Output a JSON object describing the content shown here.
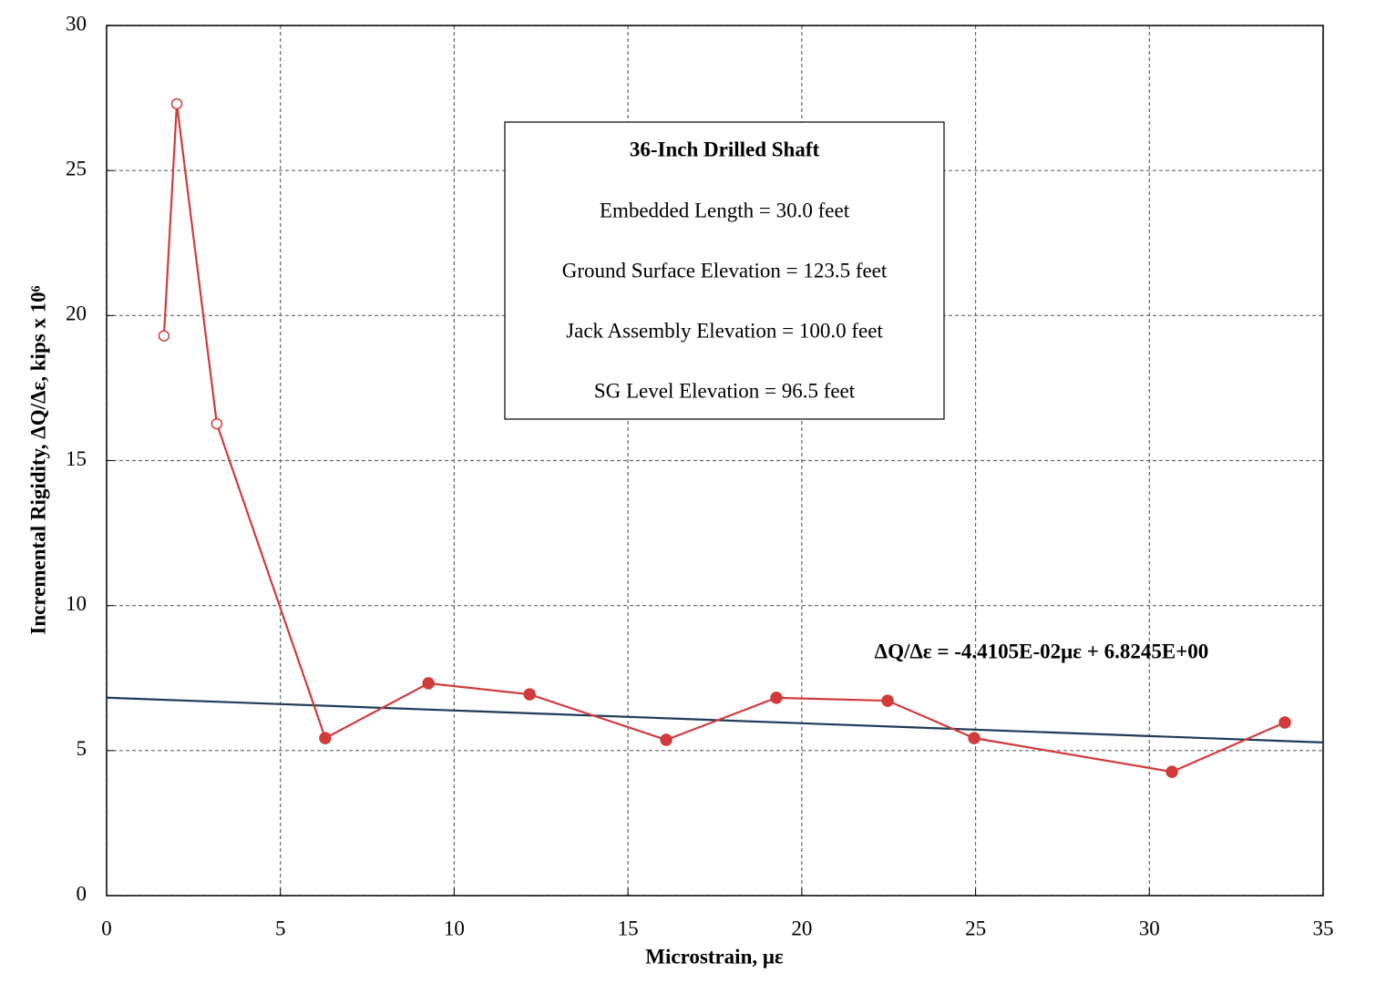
{
  "chart_data": {
    "type": "line",
    "x_label": "Microstrain, με",
    "y_label": "Incremental Rigidity, ΔQ/Δε, kips x 10⁶",
    "xlim": [
      0,
      35
    ],
    "xticks": [
      0,
      5,
      10,
      15,
      20,
      25,
      30,
      35
    ],
    "ylim": [
      0,
      30
    ],
    "yticks": [
      0,
      5,
      10,
      15,
      20,
      25,
      30
    ],
    "grid": true,
    "series": [
      {
        "color": "#d13b3b",
        "x": [
          1.65,
          2.02,
          3.17,
          6.29,
          9.26,
          12.17,
          16.1,
          19.27,
          22.47,
          24.96,
          30.65,
          33.9
        ],
        "values": [
          19.3,
          27.3,
          16.27,
          5.43,
          7.32,
          6.94,
          5.37,
          6.82,
          6.72,
          5.43,
          4.27,
          5.97
        ],
        "markers": [
          "open",
          "open",
          "open",
          "filled",
          "filled",
          "filled",
          "filled",
          "filled",
          "filled",
          "filled",
          "filled",
          "filled"
        ]
      }
    ],
    "trendline": {
      "slope": -0.044105,
      "intercept": 6.8245,
      "color": "#1f3a5a",
      "label": "ΔQ/Δε = -4.4105E-02με + 6.8245E+00"
    },
    "annotation": {
      "title": "36-Inch Drilled Shaft",
      "lines": [
        "Embedded Length = 30.0 feet",
        "Ground Surface Elevation = 123.5 feet",
        "Jack Assembly Elevation = 100.0 feet",
        "SG Level Elevation = 96.5 feet"
      ]
    }
  }
}
